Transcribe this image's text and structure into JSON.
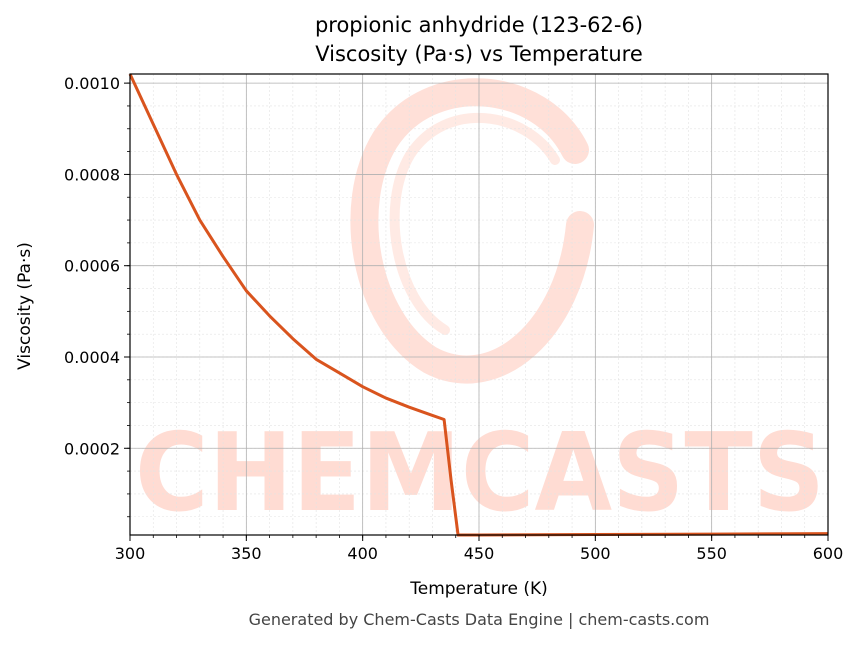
{
  "chart_data": {
    "type": "line",
    "title": "propionic anhydride (123-62-6)",
    "subtitle": "Viscosity (Pa·s) vs Temperature",
    "xlabel": "Temperature (K)",
    "ylabel": "Viscosity (Pa·s)",
    "xlim": [
      300,
      600
    ],
    "ylim": [
      1e-05,
      0.00102
    ],
    "x_ticks": [
      300,
      350,
      400,
      450,
      500,
      550,
      600
    ],
    "x_tick_labels": [
      "300",
      "350",
      "400",
      "450",
      "500",
      "550",
      "600"
    ],
    "y_ticks": [
      0.0002,
      0.0004,
      0.0006,
      0.0008,
      0.001
    ],
    "y_tick_labels": [
      "0.0002",
      "0.0004",
      "0.0006",
      "0.0008",
      "0.0010"
    ],
    "grid": true,
    "minor_grid": true,
    "legend": "none",
    "series": [
      {
        "color": "#d9541e",
        "x": [
          300,
          310,
          320,
          330,
          340,
          350,
          360,
          370,
          380,
          390,
          400,
          410,
          420,
          430,
          435,
          438,
          441,
          450,
          500,
          550,
          600
        ],
        "y": [
          0.00102,
          0.00091,
          0.0008,
          0.0007,
          0.00062,
          0.000545,
          0.00049,
          0.00044,
          0.000395,
          0.000365,
          0.000335,
          0.00031,
          0.00029,
          0.000272,
          0.000263,
          0.00013,
          1e-05,
          1e-05,
          1.1e-05,
          1.2e-05,
          1.3e-05
        ]
      }
    ]
  },
  "watermark": {
    "text": "CHEMCASTS",
    "color": "#ffd6cc"
  },
  "footer": "Generated by Chem-Casts Data Engine | chem-casts.com"
}
